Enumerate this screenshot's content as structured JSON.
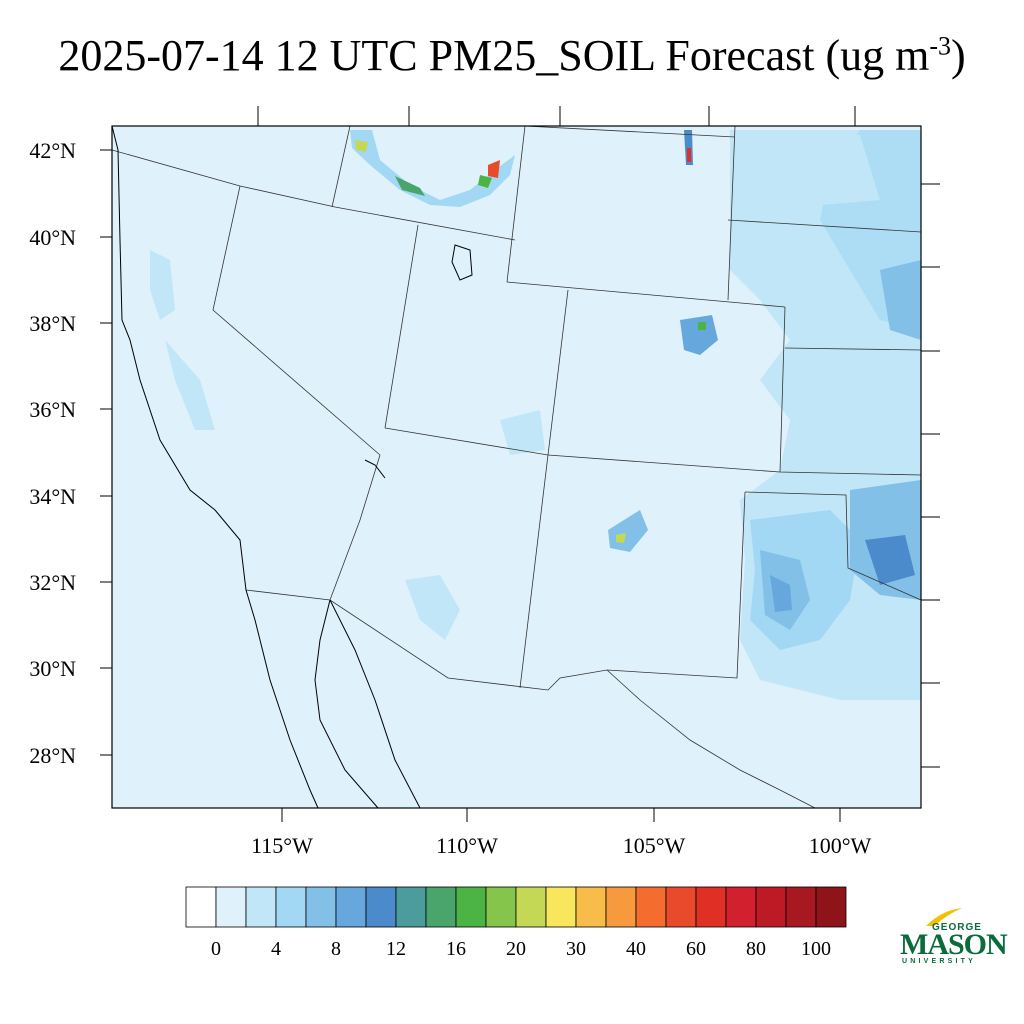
{
  "title": {
    "main": "2025-07-14 12 UTC PM25_SOIL Forecast (ug m",
    "sup": "-3",
    "close": ")"
  },
  "map": {
    "lat_labels": [
      "42°N",
      "40°N",
      "38°N",
      "36°N",
      "34°N",
      "32°N",
      "30°N",
      "28°N"
    ],
    "lon_labels": [
      "115°W",
      "110°W",
      "105°W",
      "100°W"
    ]
  },
  "colorbar": {
    "colors": [
      "#ffffff",
      "#dff1fb",
      "#c1e6f8",
      "#a2d8f4",
      "#82c0e8",
      "#66a7de",
      "#4b8acb",
      "#4c9c9e",
      "#4aa56c",
      "#4bb444",
      "#86c54c",
      "#c4d856",
      "#f8e65c",
      "#f8bc4a",
      "#f79a3e",
      "#f46d2e",
      "#e84a2b",
      "#e03026",
      "#d3202e",
      "#bd1a26",
      "#a81820",
      "#8e1419"
    ],
    "tick_labels": [
      "0",
      "4",
      "8",
      "12",
      "16",
      "20",
      "30",
      "40",
      "60",
      "80",
      "100"
    ]
  },
  "logo": {
    "top": "GEORGE",
    "middle": "MASON",
    "bottom": "UNIVERSITY",
    "color": "#0b6b3a",
    "accent": "#f2c200"
  }
}
